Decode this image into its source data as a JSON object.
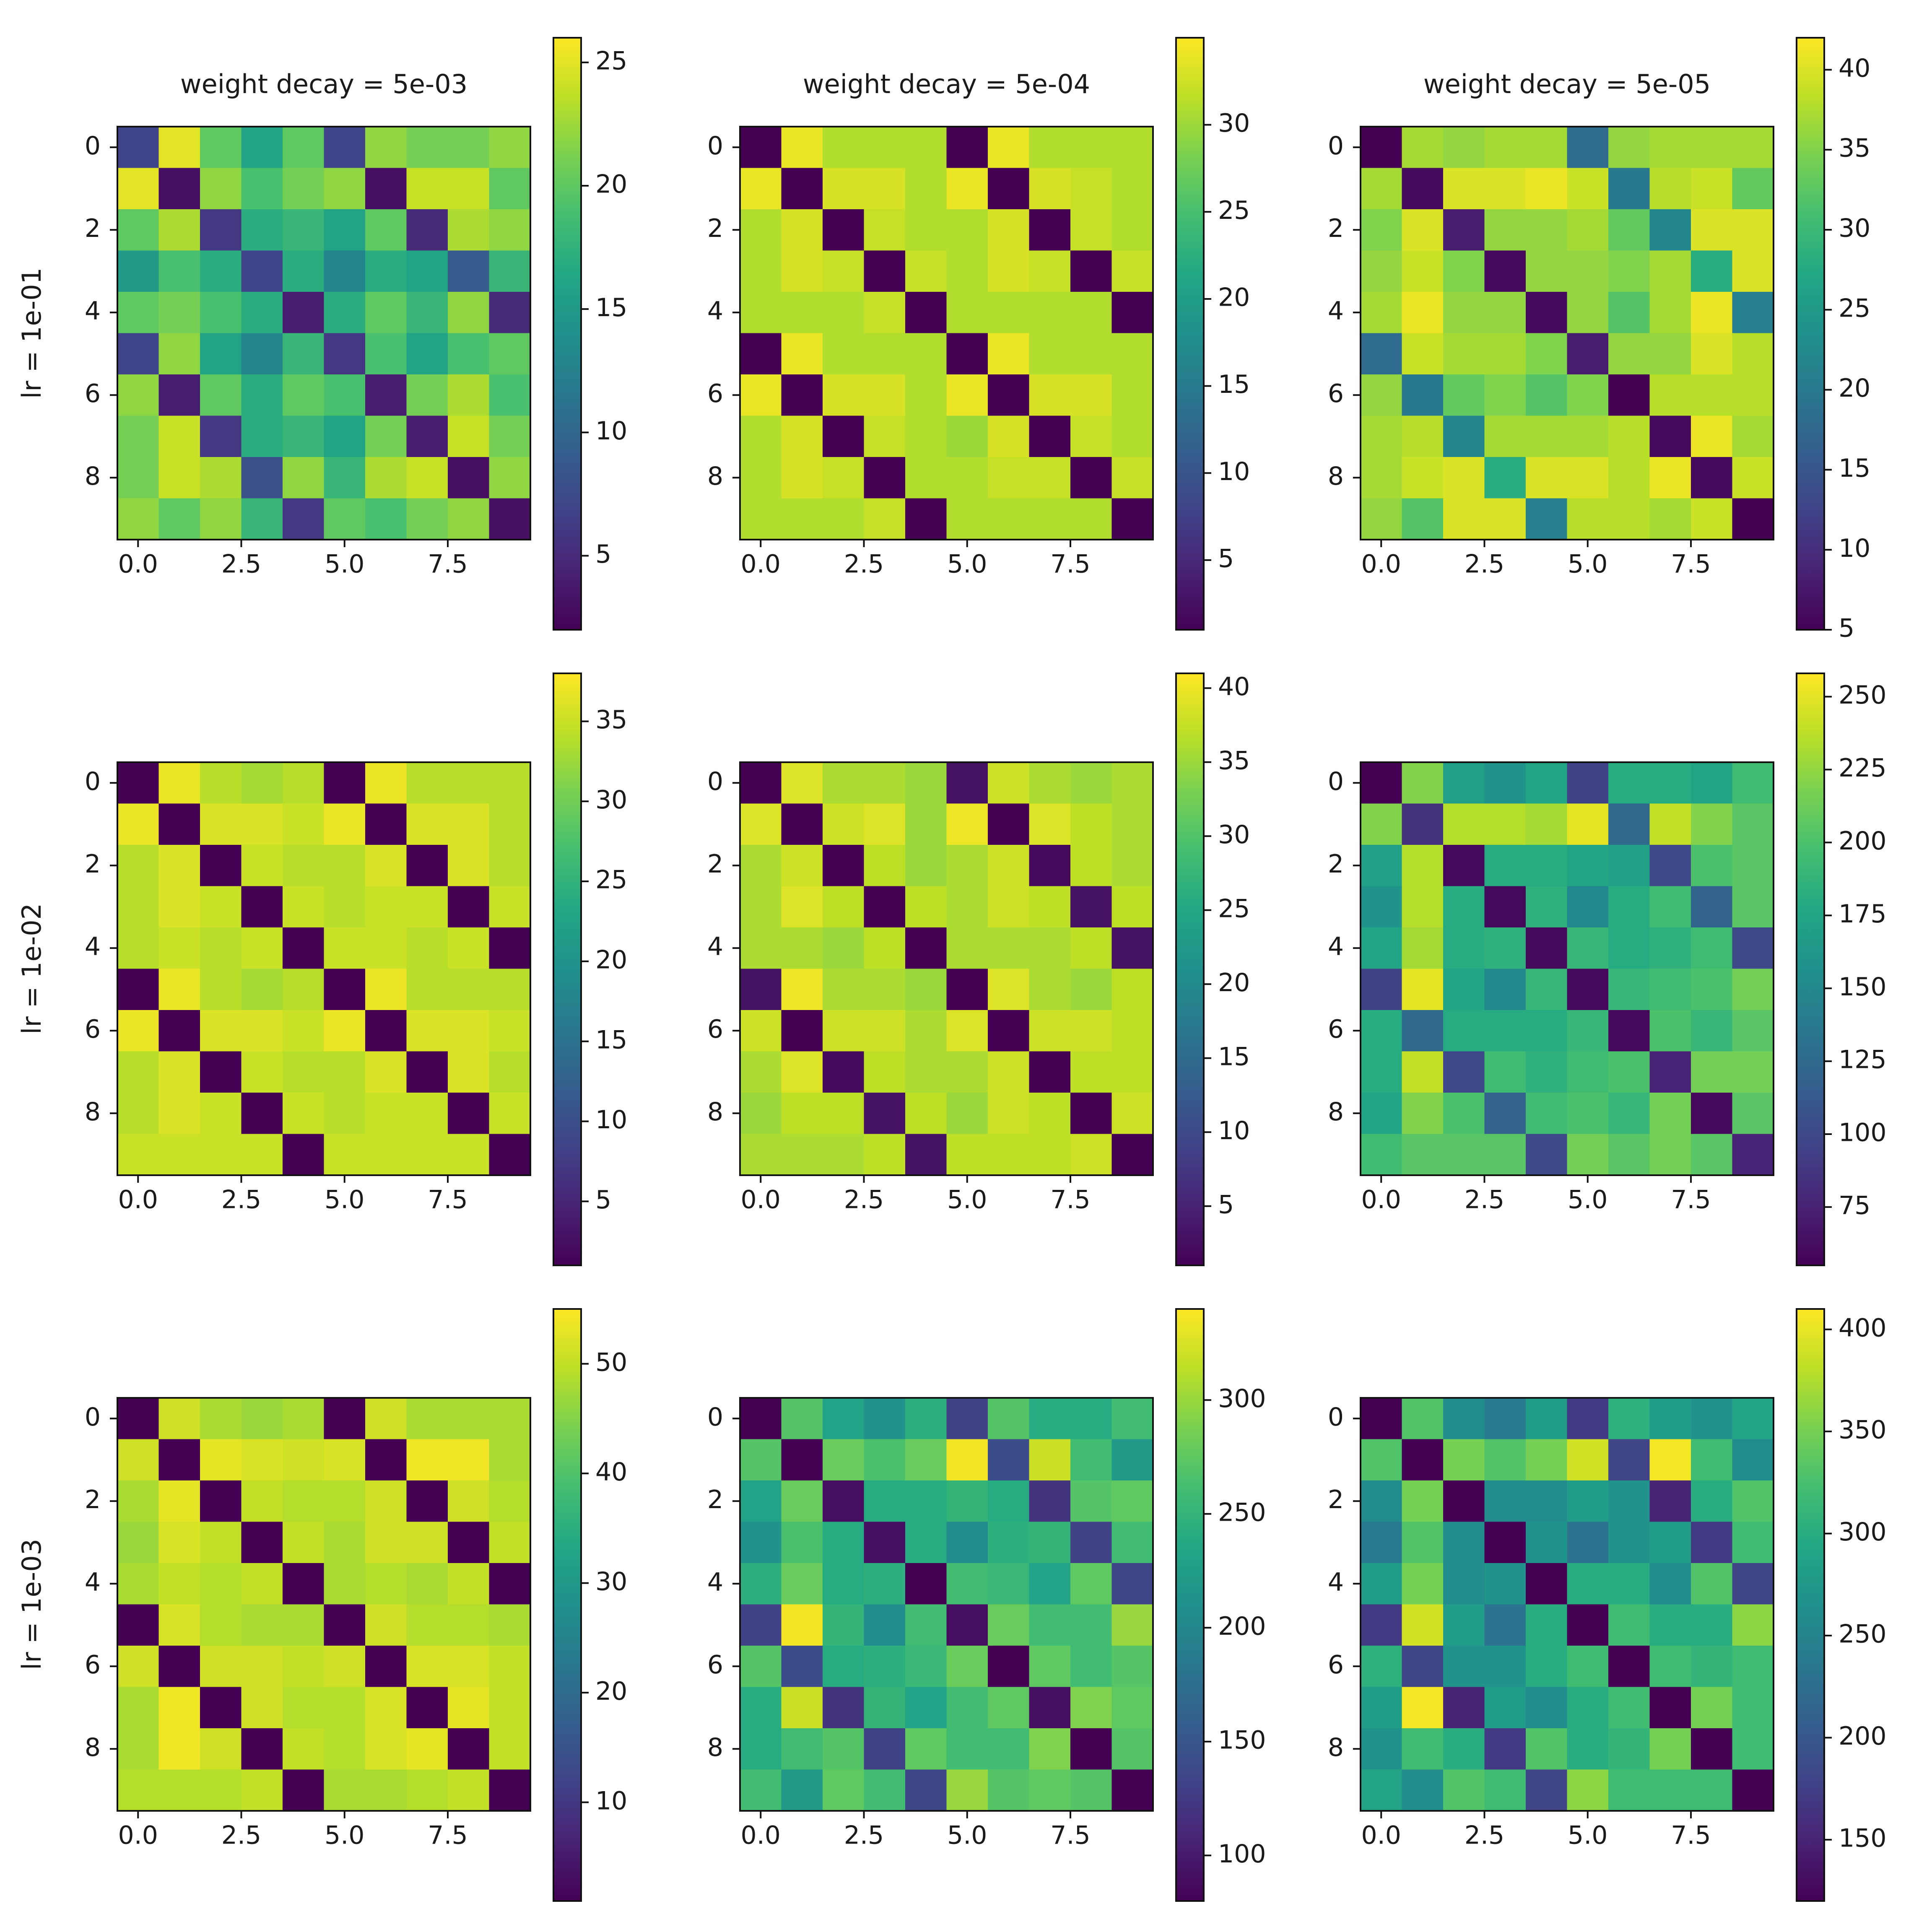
{
  "chart_data": {
    "type": "heatmap",
    "grid_rows": 3,
    "grid_cols": 3,
    "colormap": "viridis",
    "column_titles": [
      "weight decay = 5e-03",
      "weight decay = 5e-04",
      "weight decay = 5e-05"
    ],
    "row_labels": [
      "lr = 1e-01",
      "lr = 1e-02",
      "lr = 1e-03"
    ],
    "x_tick_labels": [
      "0.0",
      "2.5",
      "5.0",
      "7.5"
    ],
    "y_tick_labels": [
      "0",
      "2",
      "4",
      "6",
      "8"
    ],
    "panels": [
      {
        "row": 0,
        "col": 0,
        "colorbar_range": [
          2,
          26
        ],
        "colorbar_ticks": [
          5,
          10,
          15,
          20,
          25
        ],
        "matrix": [
          [
            7,
            25,
            20,
            16,
            20,
            7,
            22,
            21,
            21,
            22
          ],
          [
            25,
            3,
            22,
            19,
            21,
            22,
            3,
            24,
            24,
            20
          ],
          [
            20,
            23,
            6,
            17,
            18,
            16,
            20,
            5,
            23,
            22
          ],
          [
            15,
            19,
            17,
            7,
            17,
            13,
            17,
            16,
            9,
            18
          ],
          [
            20,
            21,
            19,
            17,
            4,
            17,
            20,
            18,
            22,
            5
          ],
          [
            7,
            22,
            16,
            13,
            18,
            6,
            19,
            16,
            19,
            20
          ],
          [
            22,
            4,
            20,
            17,
            20,
            19,
            4,
            21,
            23,
            19
          ],
          [
            21,
            24,
            6,
            17,
            18,
            16,
            21,
            4,
            24,
            21
          ],
          [
            21,
            24,
            23,
            8,
            22,
            18,
            23,
            24,
            3,
            22
          ],
          [
            22,
            20,
            22,
            18,
            6,
            20,
            19,
            21,
            22,
            3
          ]
        ]
      },
      {
        "row": 0,
        "col": 1,
        "colorbar_range": [
          1,
          35
        ],
        "colorbar_ticks": [
          5,
          10,
          15,
          20,
          25,
          30
        ],
        "matrix": [
          [
            1,
            34,
            31,
            31,
            31,
            1,
            34,
            31,
            31,
            31
          ],
          [
            34,
            1,
            33,
            33,
            31,
            34,
            1,
            33,
            32,
            31
          ],
          [
            31,
            33,
            1,
            32,
            31,
            31,
            33,
            1,
            32,
            31
          ],
          [
            31,
            33,
            32,
            1,
            32,
            31,
            33,
            32,
            1,
            32
          ],
          [
            31,
            31,
            31,
            32,
            1,
            31,
            31,
            31,
            31,
            1
          ],
          [
            1,
            34,
            31,
            31,
            31,
            1,
            34,
            31,
            31,
            31
          ],
          [
            34,
            1,
            33,
            33,
            31,
            34,
            1,
            33,
            33,
            31
          ],
          [
            31,
            33,
            1,
            32,
            31,
            30,
            33,
            1,
            32,
            31
          ],
          [
            31,
            33,
            32,
            1,
            31,
            31,
            32,
            32,
            1,
            32
          ],
          [
            31,
            31,
            31,
            32,
            1,
            31,
            31,
            31,
            31,
            1
          ]
        ]
      },
      {
        "row": 0,
        "col": 2,
        "colorbar_range": [
          5,
          42
        ],
        "colorbar_ticks": [
          5,
          10,
          15,
          20,
          25,
          30,
          35,
          40
        ],
        "matrix": [
          [
            5,
            37,
            36,
            37,
            37,
            18,
            36,
            37,
            37,
            37
          ],
          [
            37,
            6,
            40,
            40,
            41,
            39,
            20,
            38,
            39,
            33
          ],
          [
            35,
            40,
            8,
            36,
            36,
            37,
            33,
            22,
            40,
            40
          ],
          [
            36,
            39,
            35,
            6,
            36,
            36,
            35,
            37,
            28,
            40
          ],
          [
            37,
            41,
            36,
            36,
            6,
            36,
            32,
            37,
            41,
            21
          ],
          [
            18,
            39,
            37,
            37,
            35,
            8,
            36,
            36,
            40,
            38
          ],
          [
            36,
            20,
            33,
            35,
            32,
            35,
            5,
            38,
            38,
            38
          ],
          [
            37,
            38,
            22,
            37,
            37,
            37,
            38,
            6,
            41,
            37
          ],
          [
            37,
            39,
            40,
            28,
            40,
            40,
            38,
            41,
            6,
            39
          ],
          [
            36,
            32,
            40,
            40,
            21,
            38,
            38,
            37,
            39,
            5
          ]
        ]
      },
      {
        "row": 1,
        "col": 0,
        "colorbar_range": [
          1,
          38
        ],
        "colorbar_ticks": [
          5,
          10,
          15,
          20,
          25,
          30,
          35
        ],
        "matrix": [
          [
            1,
            37,
            34,
            33,
            34,
            1,
            37,
            34,
            34,
            34
          ],
          [
            37,
            1,
            36,
            36,
            35,
            37,
            1,
            36,
            36,
            34
          ],
          [
            34,
            36,
            1,
            35,
            34,
            34,
            36,
            1,
            36,
            34
          ],
          [
            34,
            36,
            35,
            1,
            35,
            34,
            35,
            35,
            1,
            35
          ],
          [
            34,
            35,
            34,
            35,
            1,
            35,
            35,
            34,
            35,
            1
          ],
          [
            1,
            37,
            34,
            33,
            34,
            1,
            37,
            34,
            34,
            34
          ],
          [
            37,
            1,
            36,
            36,
            35,
            37,
            1,
            36,
            36,
            35
          ],
          [
            34,
            36,
            1,
            35,
            34,
            34,
            36,
            1,
            36,
            34
          ],
          [
            34,
            36,
            35,
            1,
            35,
            34,
            35,
            35,
            1,
            35
          ],
          [
            35,
            35,
            35,
            35,
            1,
            35,
            35,
            35,
            35,
            1
          ]
        ]
      },
      {
        "row": 1,
        "col": 1,
        "colorbar_range": [
          1,
          41
        ],
        "colorbar_ticks": [
          5,
          10,
          15,
          20,
          25,
          30,
          35,
          40
        ],
        "matrix": [
          [
            1,
            39,
            36,
            36,
            35,
            3,
            38,
            36,
            35,
            36
          ],
          [
            39,
            1,
            38,
            39,
            35,
            40,
            1,
            39,
            37,
            36
          ],
          [
            36,
            38,
            1,
            37,
            35,
            36,
            38,
            2,
            37,
            36
          ],
          [
            36,
            39,
            37,
            1,
            37,
            36,
            38,
            37,
            3,
            37
          ],
          [
            36,
            36,
            35,
            37,
            1,
            36,
            36,
            36,
            37,
            3
          ],
          [
            3,
            40,
            36,
            36,
            35,
            1,
            39,
            36,
            35,
            37
          ],
          [
            38,
            1,
            38,
            38,
            36,
            39,
            1,
            38,
            38,
            37
          ],
          [
            36,
            39,
            2,
            37,
            36,
            36,
            38,
            1,
            37,
            37
          ],
          [
            35,
            37,
            37,
            3,
            37,
            35,
            38,
            37,
            1,
            38
          ],
          [
            36,
            36,
            36,
            37,
            3,
            37,
            37,
            37,
            38,
            1
          ]
        ]
      },
      {
        "row": 1,
        "col": 2,
        "colorbar_range": [
          55,
          258
        ],
        "colorbar_ticks": [
          75,
          100,
          125,
          150,
          175,
          200,
          225,
          250
        ],
        "matrix": [
          [
            55,
            220,
            170,
            160,
            175,
            95,
            180,
            180,
            175,
            195
          ],
          [
            220,
            85,
            235,
            235,
            230,
            250,
            125,
            240,
            220,
            205
          ],
          [
            170,
            235,
            60,
            180,
            180,
            175,
            170,
            100,
            200,
            205
          ],
          [
            160,
            235,
            180,
            60,
            185,
            150,
            180,
            195,
            120,
            205
          ],
          [
            175,
            230,
            180,
            185,
            60,
            190,
            180,
            185,
            195,
            100
          ],
          [
            95,
            250,
            175,
            150,
            190,
            60,
            190,
            195,
            200,
            215
          ],
          [
            180,
            125,
            180,
            180,
            180,
            190,
            60,
            200,
            190,
            205
          ],
          [
            180,
            240,
            100,
            195,
            185,
            195,
            200,
            75,
            215,
            215
          ],
          [
            175,
            220,
            200,
            120,
            195,
            200,
            190,
            215,
            60,
            205
          ],
          [
            195,
            205,
            205,
            205,
            100,
            215,
            205,
            215,
            205,
            75
          ]
        ]
      },
      {
        "row": 2,
        "col": 0,
        "colorbar_range": [
          1,
          55
        ],
        "colorbar_ticks": [
          10,
          20,
          30,
          40,
          50
        ],
        "matrix": [
          [
            1,
            51,
            48,
            47,
            48,
            1,
            51,
            48,
            48,
            48
          ],
          [
            51,
            1,
            53,
            52,
            51,
            52,
            1,
            54,
            54,
            48
          ],
          [
            48,
            53,
            1,
            50,
            49,
            49,
            51,
            1,
            51,
            49
          ],
          [
            47,
            52,
            50,
            1,
            50,
            48,
            51,
            51,
            1,
            50
          ],
          [
            48,
            50,
            49,
            50,
            1,
            48,
            49,
            48,
            50,
            1
          ],
          [
            1,
            52,
            49,
            48,
            48,
            1,
            51,
            49,
            49,
            48
          ],
          [
            51,
            1,
            51,
            51,
            50,
            51,
            1,
            52,
            52,
            50
          ],
          [
            48,
            54,
            1,
            51,
            49,
            49,
            52,
            1,
            53,
            50
          ],
          [
            48,
            54,
            51,
            1,
            50,
            49,
            52,
            53,
            1,
            50
          ],
          [
            49,
            49,
            49,
            50,
            1,
            48,
            48,
            49,
            50,
            1
          ]
        ]
      },
      {
        "row": 2,
        "col": 1,
        "colorbar_range": [
          80,
          340
        ],
        "colorbar_ticks": [
          100,
          150,
          200,
          250,
          300
        ],
        "matrix": [
          [
            80,
            270,
            230,
            215,
            245,
            130,
            270,
            240,
            240,
            260
          ],
          [
            270,
            80,
            280,
            265,
            280,
            335,
            140,
            320,
            260,
            220
          ],
          [
            230,
            280,
            90,
            240,
            240,
            250,
            240,
            120,
            270,
            275
          ],
          [
            215,
            265,
            240,
            90,
            240,
            205,
            245,
            250,
            130,
            260
          ],
          [
            245,
            280,
            240,
            245,
            80,
            260,
            255,
            230,
            275,
            135
          ],
          [
            130,
            335,
            250,
            205,
            260,
            90,
            280,
            260,
            260,
            300
          ],
          [
            270,
            140,
            240,
            245,
            255,
            280,
            80,
            275,
            260,
            270
          ],
          [
            240,
            320,
            120,
            250,
            230,
            260,
            275,
            90,
            290,
            275
          ],
          [
            240,
            260,
            270,
            130,
            275,
            260,
            260,
            290,
            80,
            270
          ],
          [
            260,
            220,
            275,
            260,
            135,
            300,
            270,
            275,
            270,
            80
          ]
        ]
      },
      {
        "row": 2,
        "col": 2,
        "colorbar_range": [
          120,
          410
        ],
        "colorbar_ticks": [
          150,
          200,
          250,
          300,
          350,
          400
        ],
        "matrix": [
          [
            120,
            330,
            260,
            240,
            280,
            170,
            305,
            280,
            270,
            290
          ],
          [
            330,
            120,
            350,
            330,
            350,
            390,
            180,
            405,
            320,
            260
          ],
          [
            260,
            350,
            120,
            260,
            260,
            280,
            270,
            150,
            300,
            330
          ],
          [
            240,
            330,
            260,
            120,
            270,
            230,
            270,
            280,
            170,
            320
          ],
          [
            280,
            350,
            260,
            270,
            120,
            300,
            300,
            260,
            330,
            180
          ],
          [
            170,
            390,
            280,
            230,
            300,
            120,
            320,
            300,
            300,
            360
          ],
          [
            305,
            180,
            270,
            270,
            300,
            320,
            120,
            320,
            310,
            320
          ],
          [
            280,
            405,
            150,
            280,
            260,
            300,
            320,
            120,
            350,
            320
          ],
          [
            270,
            320,
            300,
            170,
            330,
            300,
            310,
            350,
            120,
            320
          ],
          [
            290,
            260,
            330,
            320,
            180,
            360,
            320,
            320,
            320,
            120
          ]
        ]
      }
    ]
  }
}
